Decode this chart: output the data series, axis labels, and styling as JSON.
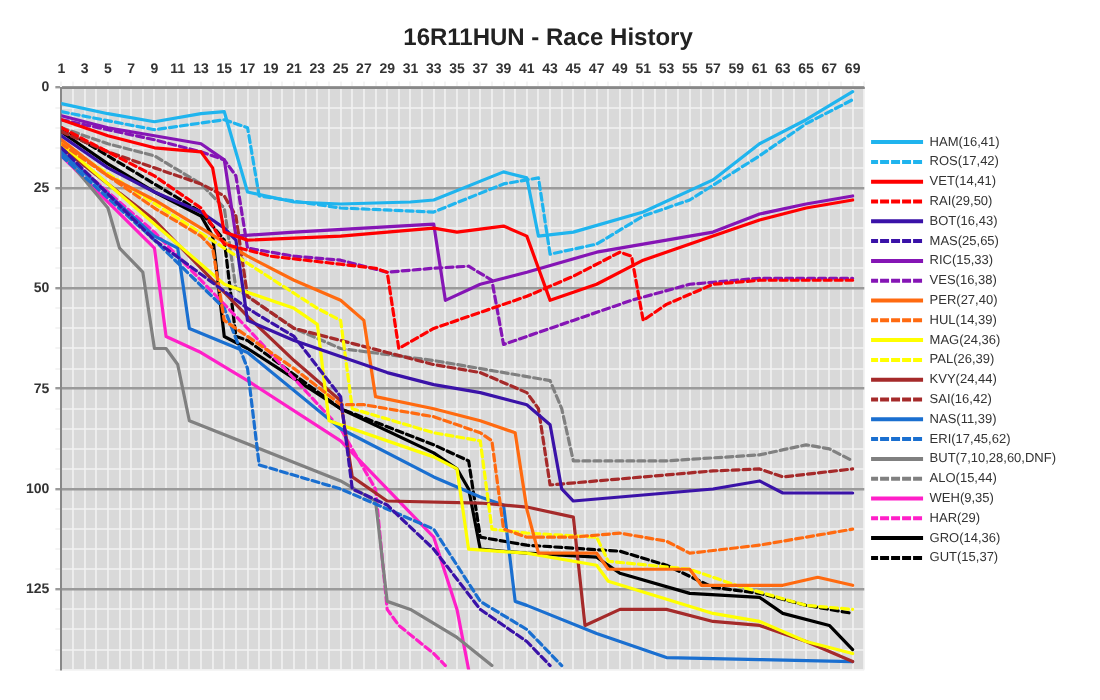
{
  "chart_data": {
    "type": "line",
    "title": "16R11HUN - Race History",
    "xlim": [
      1,
      70
    ],
    "ylim": [
      145,
      0
    ],
    "xticks": [
      1,
      {
        "value": 2,
        "label": null
      },
      3,
      {
        "value": 4,
        "label": null
      },
      5,
      {
        "value": 6,
        "label": null
      },
      7,
      {
        "value": 8,
        "label": null
      },
      9,
      {
        "value": 10,
        "label": null
      },
      11,
      {
        "value": 12,
        "label": null
      },
      13,
      {
        "value": 14,
        "label": null
      },
      15,
      {
        "value": 16,
        "label": null
      },
      17,
      {
        "value": 18,
        "label": null
      },
      19,
      {
        "value": 20,
        "label": null
      },
      21,
      {
        "value": 22,
        "label": null
      },
      23,
      {
        "value": 24,
        "label": null
      },
      25,
      {
        "value": 26,
        "label": null
      },
      27,
      {
        "value": 28,
        "label": null
      },
      29,
      {
        "value": 30,
        "label": null
      },
      31,
      {
        "value": 32,
        "label": null
      },
      33,
      {
        "value": 34,
        "label": null
      },
      35,
      {
        "value": 36,
        "label": null
      },
      37,
      {
        "value": 38,
        "label": null
      },
      39,
      {
        "value": 40,
        "label": null
      },
      41,
      {
        "value": 42,
        "label": null
      },
      43,
      {
        "value": 44,
        "label": null
      },
      45,
      {
        "value": 46,
        "label": null
      },
      47,
      {
        "value": 48,
        "label": null
      },
      49,
      {
        "value": 50,
        "label": null
      },
      51,
      {
        "value": 52,
        "label": null
      },
      53,
      {
        "value": 54,
        "label": null
      },
      55,
      {
        "value": 56,
        "label": null
      },
      57,
      {
        "value": 58,
        "label": null
      },
      59,
      {
        "value": 60,
        "label": null
      },
      61,
      {
        "value": 62,
        "label": null
      },
      63,
      {
        "value": 64,
        "label": null
      },
      65,
      {
        "value": 66,
        "label": null
      },
      67,
      {
        "value": 68,
        "label": null
      },
      69,
      {
        "value": 70,
        "label": null
      }
    ],
    "yticks": [
      0,
      {
        "value": 5,
        "label": null
      },
      {
        "value": 10,
        "label": null
      },
      {
        "value": 15,
        "label": null
      },
      {
        "value": 20,
        "label": null
      },
      25,
      {
        "value": 30,
        "label": null
      },
      {
        "value": 35,
        "label": null
      },
      {
        "value": 40,
        "label": null
      },
      {
        "value": 45,
        "label": null
      },
      50,
      {
        "value": 55,
        "label": null
      },
      {
        "value": 60,
        "label": null
      },
      {
        "value": 65,
        "label": null
      },
      {
        "value": 70,
        "label": null
      },
      75,
      {
        "value": 80,
        "label": null
      },
      {
        "value": 85,
        "label": null
      },
      {
        "value": 90,
        "label": null
      },
      {
        "value": 95,
        "label": null
      },
      100,
      {
        "value": 105,
        "label": null
      },
      {
        "value": 110,
        "label": null
      },
      {
        "value": 115,
        "label": null
      },
      {
        "value": 120,
        "label": null
      },
      125,
      {
        "value": 130,
        "label": null
      },
      {
        "value": 135,
        "label": null
      },
      {
        "value": 140,
        "label": null
      },
      {
        "value": 145,
        "label": null
      }
    ],
    "grid": true,
    "legend": "right",
    "marker": "none",
    "series": [
      {
        "name": "HAM(16,41)",
        "color": "#1fb4ee",
        "line_style": "solid",
        "x": [
          1,
          5,
          9,
          13,
          15,
          17,
          21,
          25,
          31,
          33,
          39,
          41,
          42,
          45,
          51,
          57,
          61,
          65,
          69
        ],
        "values": [
          4,
          6.5,
          8.5,
          6.5,
          6,
          26,
          28.5,
          29,
          28.5,
          28,
          21,
          22.5,
          37,
          36,
          31,
          23,
          14,
          8,
          1
        ]
      },
      {
        "name": "ROS(17,42)",
        "color": "#1fb4ee",
        "line_style": "dashed",
        "x": [
          1,
          9,
          15,
          17,
          18,
          25,
          33,
          39,
          42,
          43,
          47,
          51,
          55,
          61,
          65,
          69
        ],
        "values": [
          6,
          10.5,
          8,
          10,
          27,
          30,
          31,
          24,
          22.5,
          41.5,
          39,
          32,
          28,
          17,
          9,
          3
        ]
      },
      {
        "name": "VET(14,41)",
        "color": "#ff0000",
        "line_style": "solid",
        "x": [
          1,
          5,
          9,
          13,
          14,
          15,
          17,
          25,
          33,
          35,
          39,
          41,
          43,
          47,
          51,
          57,
          61,
          65,
          69
        ],
        "values": [
          8,
          12,
          15,
          16,
          20,
          36,
          38,
          37,
          35,
          36,
          34.5,
          37,
          53,
          49,
          43,
          37,
          33,
          30,
          28
        ]
      },
      {
        "name": "RAI(29,50)",
        "color": "#ff0000",
        "line_style": "dashed",
        "x": [
          1,
          9,
          13,
          15,
          19,
          25,
          28,
          29,
          30,
          33,
          37,
          41,
          45,
          49,
          50,
          51,
          53,
          57,
          61,
          69
        ],
        "values": [
          10,
          22,
          30,
          39,
          42,
          44,
          45,
          46,
          65,
          60,
          56,
          52,
          47,
          41,
          42,
          58,
          54,
          49,
          48,
          48
        ]
      },
      {
        "name": "BOT(16,43)",
        "color": "#3a12a8",
        "line_style": "solid",
        "x": [
          1,
          5,
          9,
          13,
          15,
          16,
          17,
          21,
          25,
          29,
          33,
          37,
          41,
          43,
          44,
          45,
          57,
          61,
          63,
          69
        ],
        "values": [
          12,
          20,
          26,
          31,
          35,
          38,
          58,
          63,
          67,
          71,
          74,
          76,
          79,
          84,
          100,
          103,
          100,
          98,
          101,
          101
        ]
      },
      {
        "name": "MAS(25,65)",
        "color": "#3a12a8",
        "line_style": "dashed",
        "x": [
          1,
          9,
          17,
          21,
          25,
          26,
          29,
          33,
          37,
          41,
          43
        ],
        "values": [
          15,
          38,
          55,
          62,
          77,
          100,
          104,
          115,
          130,
          138,
          144
        ]
      },
      {
        "name": "RIC(15,33)",
        "color": "#8515b5",
        "line_style": "solid",
        "x": [
          1,
          5,
          9,
          13,
          15,
          16,
          21,
          27,
          33,
          34,
          37,
          41,
          47,
          51,
          57,
          61,
          65,
          69
        ],
        "values": [
          7,
          10,
          12,
          14,
          18,
          37,
          36,
          35,
          34,
          53,
          49,
          46,
          41,
          39,
          36,
          31.5,
          29,
          27
        ]
      },
      {
        "name": "VES(16,38)",
        "color": "#8515b5",
        "line_style": "dashed",
        "x": [
          1,
          9,
          13,
          15,
          16,
          17,
          21,
          25,
          29,
          33,
          36,
          38,
          39,
          41,
          45,
          50,
          55,
          61,
          69
        ],
        "values": [
          8,
          13,
          16,
          18,
          22,
          40,
          42,
          43,
          46,
          45,
          44.5,
          48,
          64,
          62,
          58,
          53,
          49,
          47.5,
          47.5
        ]
      },
      {
        "name": "PER(27,40)",
        "color": "#ff6a10",
        "line_style": "solid",
        "x": [
          1,
          5,
          9,
          13,
          17,
          21,
          25,
          27,
          28,
          33,
          37,
          40,
          41,
          42,
          47,
          48,
          55,
          56,
          63,
          66,
          69
        ],
        "values": [
          13,
          22,
          28,
          35,
          42,
          48,
          53,
          58,
          77,
          80,
          83,
          86,
          105,
          116,
          116,
          120,
          120,
          124,
          124,
          122,
          124
        ]
      },
      {
        "name": "HUL(14,39)",
        "color": "#ff6a10",
        "line_style": "dashed",
        "x": [
          1,
          9,
          13,
          14,
          15,
          17,
          21,
          25,
          27,
          33,
          37,
          38,
          39,
          41,
          45,
          49,
          53,
          55,
          61,
          65,
          69
        ],
        "values": [
          14,
          30,
          37,
          40,
          58,
          62,
          70,
          79,
          79,
          82,
          86,
          88,
          110,
          112,
          112,
          111,
          113,
          116,
          114,
          112,
          110
        ]
      },
      {
        "name": "MAG(24,36)",
        "color": "#ffff00",
        "line_style": "solid",
        "x": [
          1,
          9,
          15,
          21,
          23,
          24,
          33,
          35,
          36,
          41,
          47,
          48,
          57,
          61,
          65,
          69
        ],
        "values": [
          14,
          34,
          49,
          55,
          59,
          83,
          92,
          95,
          115,
          116,
          119,
          123,
          131,
          133,
          138,
          141
        ]
      },
      {
        "name": "PAL(26,39)",
        "color": "#ffff00",
        "line_style": "dashed",
        "x": [
          1,
          15,
          23,
          25,
          26,
          33,
          37,
          38,
          41,
          47,
          48,
          55,
          59,
          65,
          69
        ],
        "values": [
          14,
          40,
          55,
          58,
          80,
          86,
          88,
          110,
          111,
          112,
          118,
          120,
          124,
          129,
          130
        ]
      },
      {
        "name": "KVY(24,44)",
        "color": "#a52a2a",
        "line_style": "solid",
        "x": [
          1,
          9,
          17,
          21,
          25,
          26,
          29,
          37,
          41,
          45,
          46,
          49,
          53,
          57,
          61,
          63,
          65,
          69
        ],
        "values": [
          15,
          33,
          57,
          68,
          78,
          97,
          103,
          103.5,
          104.5,
          107,
          134,
          130,
          130,
          133,
          134,
          136,
          138,
          143
        ]
      },
      {
        "name": "SAI(16,42)",
        "color": "#a52a2a",
        "line_style": "dashed",
        "x": [
          1,
          5,
          9,
          13,
          15,
          16,
          17,
          21,
          25,
          29,
          33,
          37,
          41,
          42,
          43,
          47,
          53,
          57,
          61,
          63,
          69
        ],
        "values": [
          11,
          16,
          20,
          24,
          27,
          32,
          52,
          60,
          63,
          66,
          69,
          71,
          76,
          80,
          99,
          98,
          96.5,
          95.5,
          95,
          97,
          95
        ]
      },
      {
        "name": "NAS(11,39)",
        "color": "#1a6fd0",
        "line_style": "solid",
        "x": [
          1,
          9,
          11,
          12,
          17,
          25,
          33,
          37,
          39,
          40,
          41,
          47,
          53,
          61,
          69
        ],
        "values": [
          16,
          37,
          40,
          60,
          66,
          85,
          97,
          102,
          104,
          128,
          129,
          136,
          142,
          142.5,
          143
        ]
      },
      {
        "name": "ERI(17,45,62)",
        "color": "#1a6fd0",
        "line_style": "dashed",
        "x": [
          1,
          9,
          15,
          17,
          18,
          25,
          33,
          37,
          41,
          44
        ],
        "values": [
          17,
          38,
          55,
          70,
          94,
          100,
          110,
          128,
          135,
          144
        ]
      },
      {
        "name": "BUT(7,10,28,60,DNF)",
        "color": "#808080",
        "line_style": "solid",
        "x": [
          1,
          5,
          6,
          7,
          8,
          9,
          10,
          11,
          12,
          25,
          28,
          29,
          31,
          35,
          38
        ],
        "values": [
          16,
          30,
          40,
          43,
          46,
          65,
          65,
          69,
          83,
          98,
          103,
          128,
          130,
          137,
          144
        ]
      },
      {
        "name": "ALO(15,44)",
        "color": "#808080",
        "line_style": "dashed",
        "x": [
          1,
          5,
          9,
          13,
          15,
          16,
          21,
          25,
          33,
          41,
          43,
          44,
          45,
          53,
          61,
          65,
          67,
          69
        ],
        "values": [
          10,
          14,
          17,
          24,
          30,
          50,
          60,
          65,
          68,
          72,
          73,
          80,
          93,
          93,
          91.5,
          89,
          90,
          93
        ]
      },
      {
        "name": "WEH(9,35)",
        "color": "#ff1fc8",
        "line_style": "solid",
        "x": [
          1,
          9,
          10,
          13,
          17,
          25,
          29,
          33,
          35,
          36
        ],
        "values": [
          17,
          40,
          62,
          66,
          73,
          88,
          100,
          112,
          130,
          145
        ]
      },
      {
        "name": "HAR(29)",
        "color": "#ff1fc8",
        "line_style": "dashed",
        "x": [
          1,
          9,
          17,
          25,
          28,
          29,
          30,
          33,
          34
        ],
        "values": [
          16,
          36,
          60,
          85,
          100,
          130,
          134,
          141,
          144
        ]
      },
      {
        "name": "GRO(14,36)",
        "color": "#000000",
        "line_style": "solid",
        "x": [
          1,
          5,
          9,
          13,
          14,
          15,
          17,
          25,
          33,
          35,
          36,
          37,
          41,
          47,
          49,
          55,
          61,
          63,
          67,
          69
        ],
        "values": [
          11,
          19,
          26,
          32,
          37,
          62,
          65,
          80,
          91,
          95,
          100,
          115,
          116,
          117,
          121,
          126,
          127,
          131,
          134,
          140
        ]
      },
      {
        "name": "GUT(15,37)",
        "color": "#000000",
        "line_style": "dashed",
        "x": [
          1,
          13,
          15,
          16,
          17,
          25,
          33,
          36,
          37,
          41,
          49,
          53,
          57,
          61,
          65,
          69
        ],
        "values": [
          10,
          31,
          38,
          62,
          63,
          80,
          89,
          93,
          112,
          114,
          115.5,
          119,
          124.5,
          126,
          129,
          131
        ]
      }
    ]
  }
}
